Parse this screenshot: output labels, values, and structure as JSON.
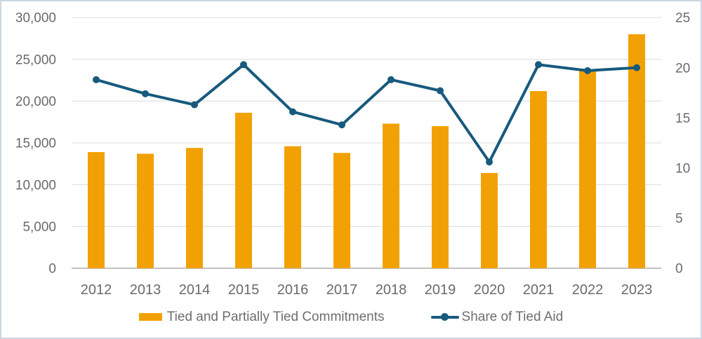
{
  "chart_data": {
    "type": "combo",
    "title": "",
    "categories": [
      "2012",
      "2013",
      "2014",
      "2015",
      "2016",
      "2017",
      "2018",
      "2019",
      "2020",
      "2021",
      "2022",
      "2023"
    ],
    "series": [
      {
        "name": "Tied and Partially Tied Commitments",
        "type": "bar",
        "axis": "left",
        "values": [
          13900,
          13700,
          14400,
          18600,
          14600,
          13800,
          17300,
          17000,
          11400,
          21200,
          23600,
          28000
        ]
      },
      {
        "name": "Share of Tied Aid",
        "type": "line",
        "axis": "right",
        "values": [
          18.8,
          17.4,
          16.3,
          20.3,
          15.6,
          14.3,
          18.8,
          17.7,
          10.6,
          20.3,
          19.7,
          20.0
        ]
      }
    ],
    "left_axis": {
      "min": 0,
      "max": 30000,
      "step": 5000,
      "tick_labels": [
        "0",
        "5,000",
        "10,000",
        "15,000",
        "20,000",
        "25,000",
        "30,000"
      ]
    },
    "right_axis": {
      "min": 0,
      "max": 25,
      "step": 5,
      "tick_labels": [
        "0",
        "5",
        "10",
        "15",
        "20",
        "25"
      ]
    },
    "grid": true,
    "legend_position": "bottom"
  },
  "colors": {
    "bar": "#F2A104",
    "line": "#175A7D",
    "grid": "#dedede",
    "axis_line": "#adadad",
    "tick_text": "#6a6a6a",
    "legend_text": "#6e6e6e"
  }
}
